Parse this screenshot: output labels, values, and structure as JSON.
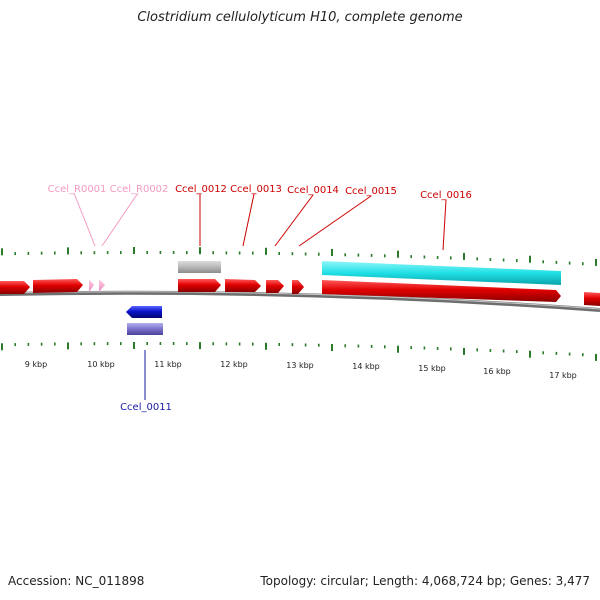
{
  "title": "Clostridium cellulolyticum H10, complete genome",
  "footer": {
    "accession": "Accession: NC_011898",
    "summary": "Topology: circular; Length: 4,068,724 bp; Genes: 3,477"
  },
  "kbp_labels": [
    "9 kbp",
    "10 kbp",
    "11 kbp",
    "12 kbp",
    "13 kbp",
    "14 kbp",
    "15 kbp",
    "16 kbp",
    "17 kbp"
  ],
  "gene_labels": [
    {
      "id": "r0001",
      "text": "Ccel_R0001",
      "color": "#f29ac3"
    },
    {
      "id": "r0002",
      "text": "Ccel_R0002",
      "color": "#f29ac3"
    },
    {
      "id": "g0012",
      "text": "Ccel_0012",
      "color": "#cc0000"
    },
    {
      "id": "g0013",
      "text": "Ccel_0013",
      "color": "#cc0000"
    },
    {
      "id": "g0014",
      "text": "Ccel_0014",
      "color": "#cc0000"
    },
    {
      "id": "g0015",
      "text": "Ccel_0015",
      "color": "#cc0000"
    },
    {
      "id": "g0016",
      "text": "Ccel_0016",
      "color": "#cc0000"
    },
    {
      "id": "g0011",
      "text": "Ccel_0011",
      "color": "#1a1aa8"
    }
  ],
  "colors": {
    "forward_gene": "#e00000",
    "reverse_gene": "#0a12cc",
    "rna_gene": "#f7a6cf",
    "cds_grey": "#b8b8b8",
    "cds_cyan": "#1fe0e6",
    "cds_purple": "#7a72cc",
    "tick": "#2a7a2a",
    "backbone": "#888888"
  }
}
